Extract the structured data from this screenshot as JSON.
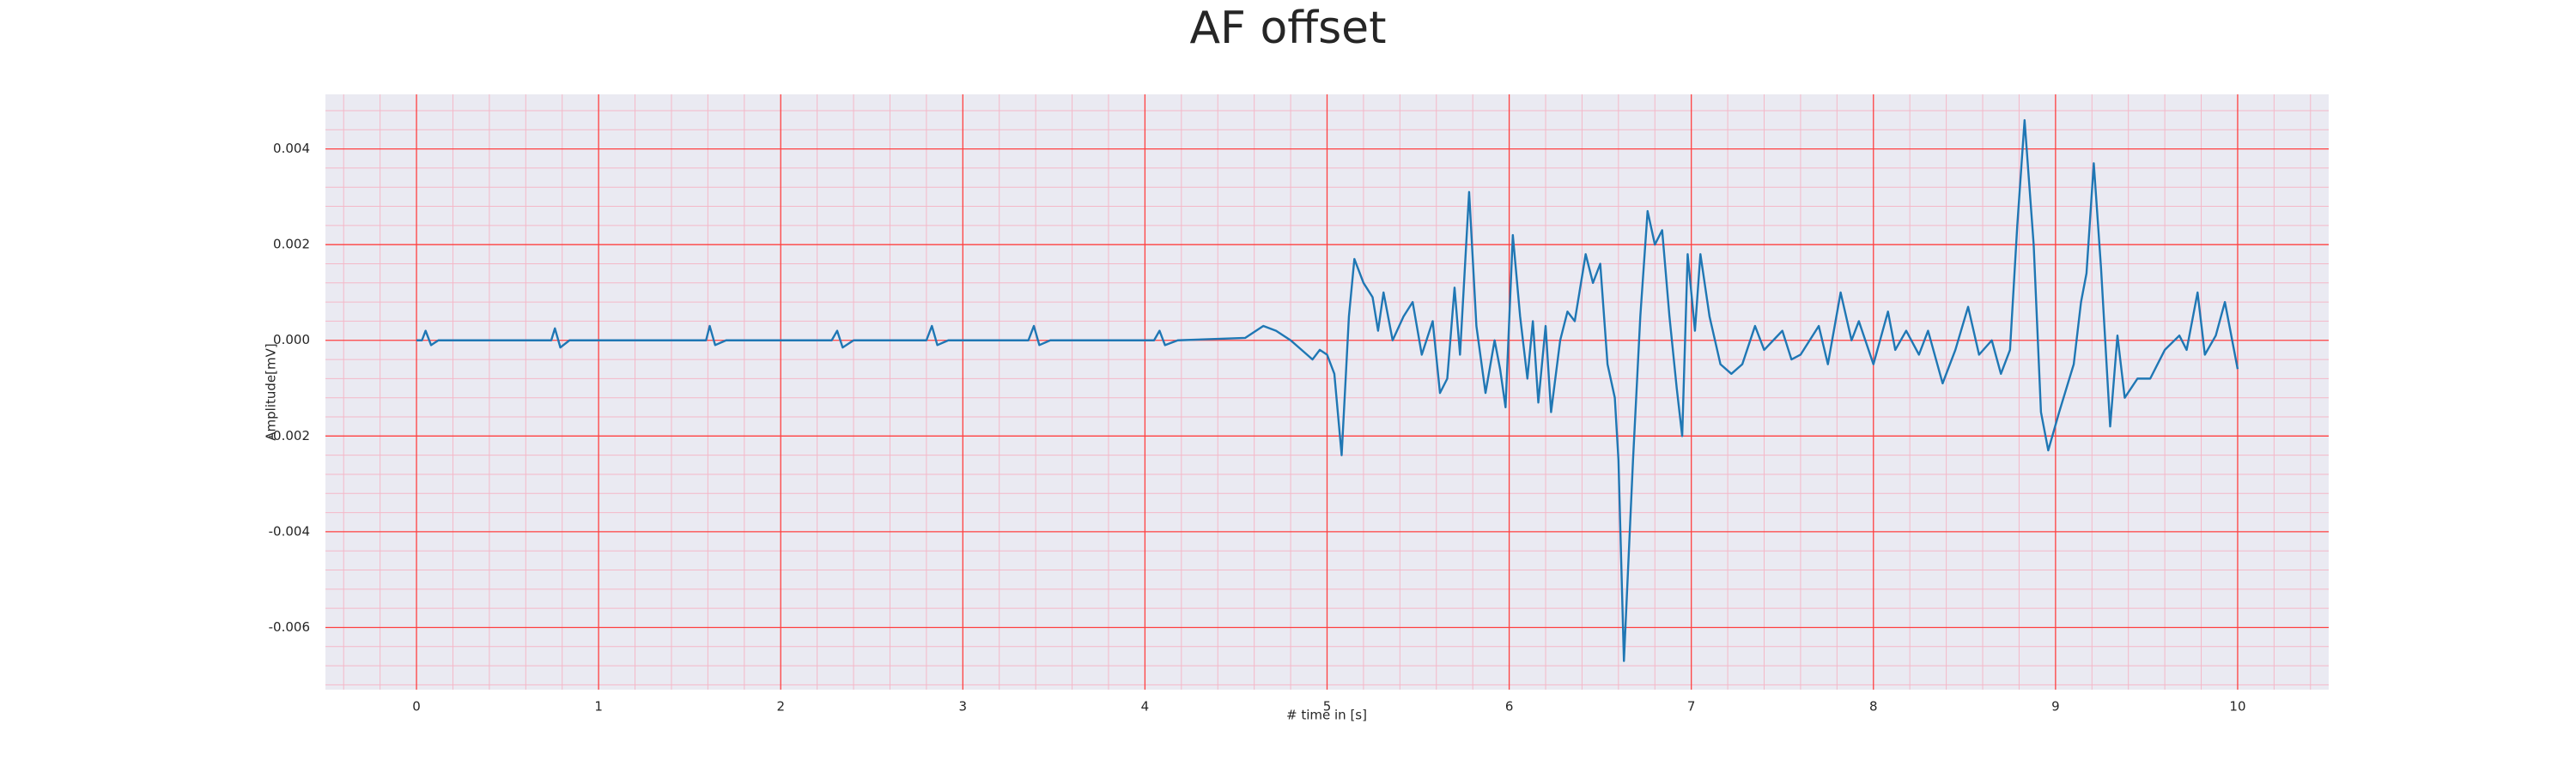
{
  "chart_data": {
    "type": "line",
    "title": "AF offset",
    "xlabel": "# time in [s]",
    "ylabel": "Amplitude[mV]",
    "xlim": [
      -0.5,
      10.5
    ],
    "ylim": [
      -0.0073,
      0.00514
    ],
    "xticks": [
      0,
      1,
      2,
      3,
      4,
      5,
      6,
      7,
      8,
      9,
      10
    ],
    "yticks": [
      -0.006,
      -0.004,
      -0.002,
      {
        "value": 0,
        "label": "0.000"
      },
      0.002,
      0.004
    ],
    "grid": true,
    "minor_grid": true,
    "grid_color": "#ff4040",
    "minor_grid_color": "#f4b8c8",
    "background": "#eaeaf2",
    "x": [
      0,
      0.03,
      0.05,
      0.08,
      0.12,
      0.5,
      0.74,
      0.76,
      0.79,
      0.84,
      1.5,
      1.59,
      1.61,
      1.64,
      1.7,
      2.28,
      2.31,
      2.34,
      2.4,
      2.8,
      2.83,
      2.86,
      2.92,
      3.36,
      3.39,
      3.42,
      3.48,
      4.05,
      4.08,
      4.11,
      4.18,
      4.55,
      4.65,
      4.72,
      4.8,
      4.86,
      4.92,
      4.96,
      5.0,
      5.04,
      5.08,
      5.12,
      5.15,
      5.2,
      5.25,
      5.28,
      5.31,
      5.36,
      5.42,
      5.47,
      5.52,
      5.58,
      5.62,
      5.66,
      5.7,
      5.73,
      5.78,
      5.82,
      5.87,
      5.92,
      5.95,
      5.98,
      6.02,
      6.06,
      6.1,
      6.13,
      6.16,
      6.2,
      6.23,
      6.28,
      6.32,
      6.36,
      6.42,
      6.46,
      6.5,
      6.54,
      6.58,
      6.6,
      6.63,
      6.68,
      6.72,
      6.76,
      6.8,
      6.84,
      6.88,
      6.92,
      6.95,
      6.98,
      7.02,
      7.05,
      7.1,
      7.16,
      7.22,
      7.28,
      7.35,
      7.4,
      7.45,
      7.5,
      7.55,
      7.6,
      7.7,
      7.75,
      7.82,
      7.88,
      7.92,
      8.0,
      8.08,
      8.12,
      8.18,
      8.25,
      8.3,
      8.38,
      8.45,
      8.52,
      8.58,
      8.65,
      8.7,
      8.75,
      8.79,
      8.83,
      8.88,
      8.92,
      8.96,
      9.02,
      9.1,
      9.14,
      9.17,
      9.21,
      9.25,
      9.3,
      9.34,
      9.38,
      9.45,
      9.52,
      9.6,
      9.68,
      9.72,
      9.78,
      9.82,
      9.88,
      9.93,
      9.97,
      10.0
    ],
    "series": [
      {
        "name": "AF offset",
        "color": "#1f77b4",
        "values": [
          0,
          0,
          0.0002,
          -0.0001,
          0,
          0,
          0,
          0.00025,
          -0.00015,
          0,
          0,
          0,
          0.0003,
          -0.0001,
          0,
          0,
          0.0002,
          -0.00015,
          0,
          0,
          0.0003,
          -0.0001,
          0,
          0,
          0.0003,
          -0.0001,
          0,
          0,
          0.0002,
          -0.0001,
          0,
          5e-05,
          0.0003,
          0.0002,
          0,
          -0.0002,
          -0.0004,
          -0.0002,
          -0.0003,
          -0.0007,
          -0.0024,
          0.0005,
          0.0017,
          0.0012,
          0.0009,
          0.0002,
          0.001,
          0,
          0.0005,
          0.0008,
          -0.0003,
          0.0004,
          -0.0011,
          -0.0008,
          0.0011,
          -0.0003,
          0.0031,
          0.0003,
          -0.0011,
          0,
          -0.0006,
          -0.0014,
          0.0022,
          0.0005,
          -0.0008,
          0.0004,
          -0.0013,
          0.0003,
          -0.0015,
          0,
          0.0006,
          0.0004,
          0.0018,
          0.0012,
          0.0016,
          -0.0005,
          -0.0012,
          -0.0025,
          -0.0067,
          -0.0025,
          0.0005,
          0.0027,
          0.002,
          0.0023,
          0.0005,
          -0.001,
          -0.002,
          0.0018,
          0.0002,
          0.0018,
          0.0005,
          -0.0005,
          -0.0007,
          -0.0005,
          0.0003,
          -0.0002,
          0,
          0.0002,
          -0.0004,
          -0.0003,
          0.0003,
          -0.0005,
          0.001,
          0,
          0.0004,
          -0.0005,
          0.0006,
          -0.0002,
          0.0002,
          -0.0003,
          0.0002,
          -0.0009,
          -0.0002,
          0.0007,
          -0.0003,
          0,
          -0.0007,
          -0.0002,
          0.0024,
          0.0046,
          0.002,
          -0.0015,
          -0.0023,
          -0.0015,
          -0.0005,
          0.0008,
          0.0014,
          0.0037,
          0.0015,
          -0.0018,
          0.0001,
          -0.0012,
          -0.0008,
          -0.0008,
          -0.0002,
          0.0001,
          -0.0002,
          0.001,
          -0.0003,
          0.0001,
          0.0008,
          0,
          -0.0006
        ]
      }
    ]
  }
}
